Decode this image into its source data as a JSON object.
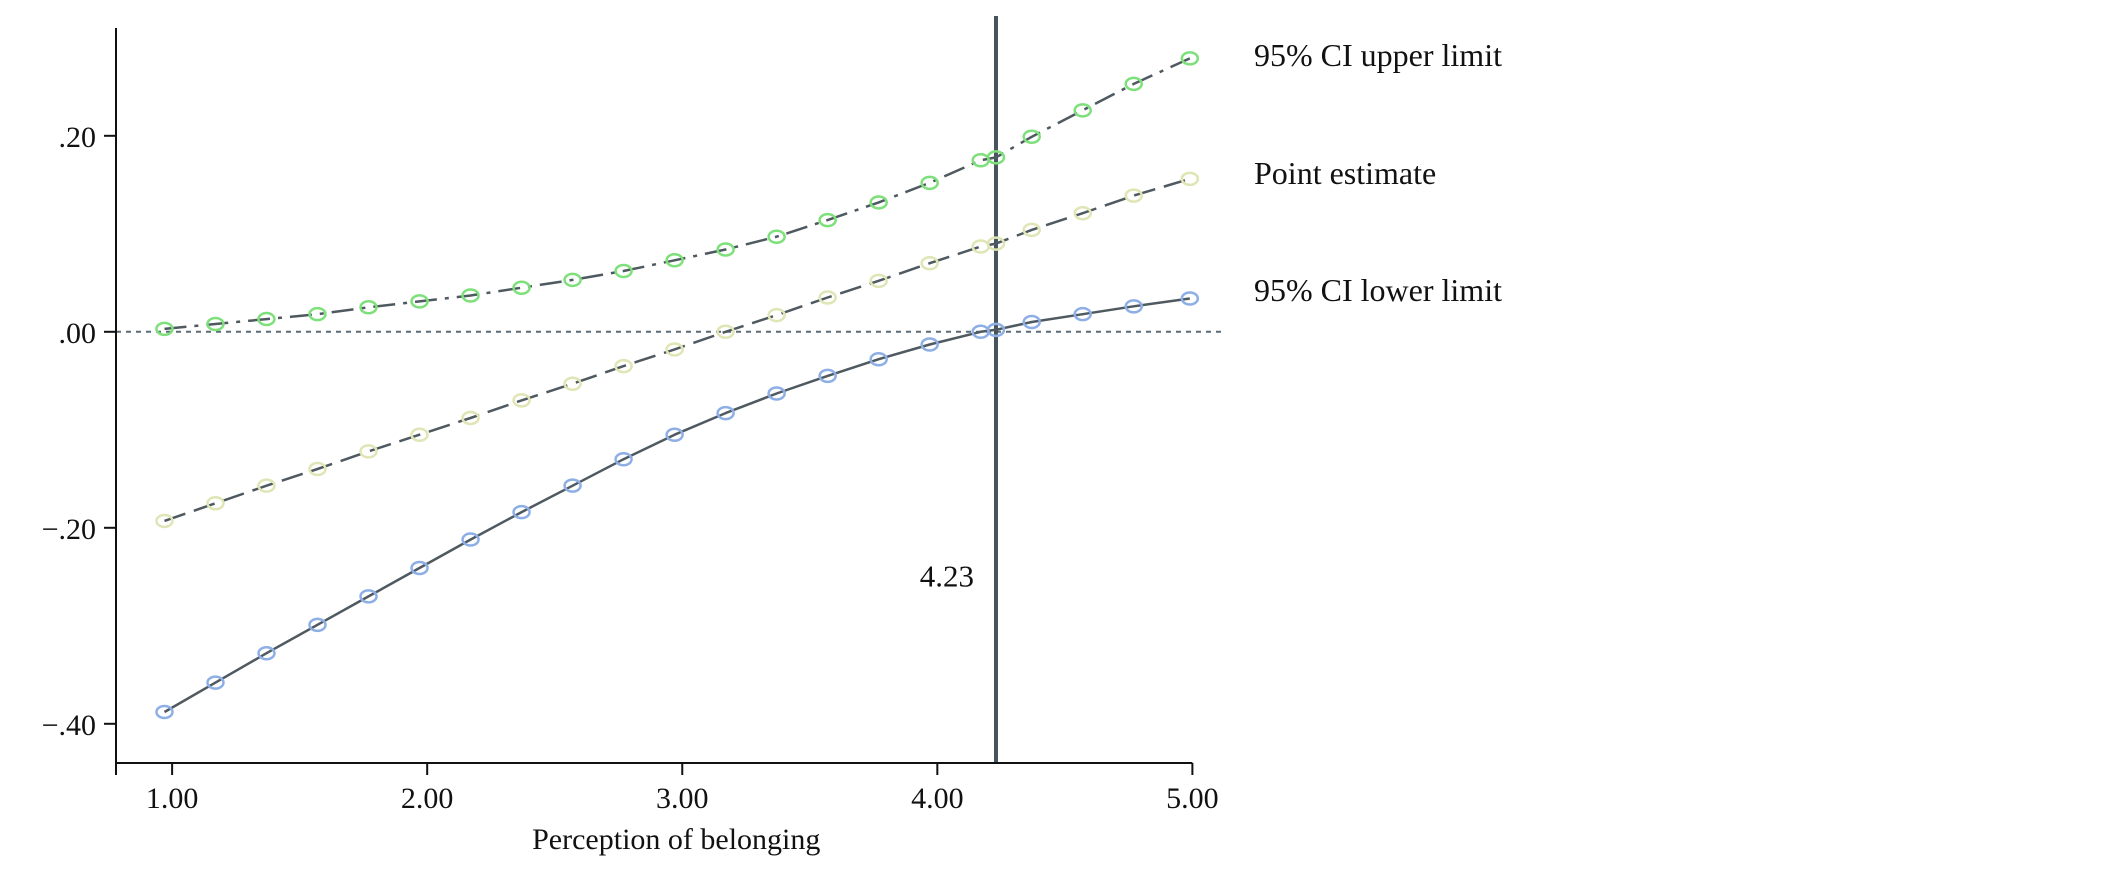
{
  "chart_data": {
    "type": "line",
    "title": "",
    "xlabel": "Perception of belonging",
    "ylabel": "",
    "xlim": [
      0.78,
      5.12
    ],
    "ylim": [
      -0.44,
      0.31
    ],
    "x_ticks": [
      1,
      2,
      3,
      4,
      5
    ],
    "x_tick_labels": [
      "1.00",
      "2.00",
      "3.00",
      "4.00",
      "5.00"
    ],
    "y_ticks": [
      0.2,
      0.0,
      -0.2,
      -0.4
    ],
    "y_tick_labels": [
      ".20",
      ".00",
      "−.20",
      "−.40"
    ],
    "grid": false,
    "legend_placement": "right",
    "reference_lines": [
      {
        "orientation": "horizontal",
        "value": 0.0,
        "style": "dotted",
        "color": "#5a6b78"
      },
      {
        "orientation": "vertical",
        "value": 4.23,
        "style": "solid",
        "color": "#46545e"
      }
    ],
    "annotations": [
      {
        "text": "4.23",
        "x": 4.23,
        "y": -0.26
      }
    ],
    "x": [
      0.97,
      1.17,
      1.37,
      1.57,
      1.77,
      1.97,
      2.17,
      2.37,
      2.57,
      2.77,
      2.97,
      3.17,
      3.37,
      3.57,
      3.77,
      3.97,
      4.17,
      4.23,
      4.37,
      4.57,
      4.77,
      4.99
    ],
    "series": [
      {
        "name": "95% CI upper limit",
        "style": "dash-dot",
        "line_color": "#4e5960",
        "marker_color": "#7ee07a",
        "values": [
          0.003,
          0.008,
          0.013,
          0.018,
          0.025,
          0.031,
          0.037,
          0.045,
          0.053,
          0.062,
          0.073,
          0.084,
          0.097,
          0.114,
          0.132,
          0.152,
          0.175,
          0.178,
          0.199,
          0.226,
          0.253,
          0.279
        ]
      },
      {
        "name": "Point estimate",
        "style": "dashed",
        "line_color": "#4e5960",
        "marker_color": "#dfe5b5",
        "values": [
          -0.193,
          -0.175,
          -0.157,
          -0.14,
          -0.122,
          -0.105,
          -0.088,
          -0.07,
          -0.053,
          -0.035,
          -0.018,
          0.0,
          0.017,
          0.035,
          0.052,
          0.07,
          0.087,
          0.09,
          0.104,
          0.121,
          0.139,
          0.156
        ]
      },
      {
        "name": "95% CI lower limit",
        "style": "solid",
        "line_color": "#4e5960",
        "marker_color": "#8eaee6",
        "values": [
          -0.388,
          -0.358,
          -0.328,
          -0.299,
          -0.27,
          -0.241,
          -0.212,
          -0.184,
          -0.157,
          -0.13,
          -0.105,
          -0.083,
          -0.063,
          -0.045,
          -0.028,
          -0.013,
          0.0,
          0.002,
          0.01,
          0.018,
          0.026,
          0.034
        ]
      }
    ]
  }
}
